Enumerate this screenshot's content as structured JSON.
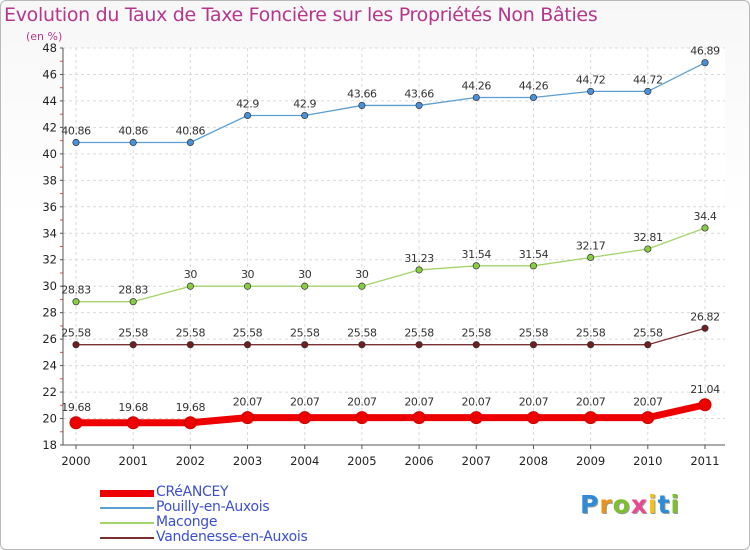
{
  "title": "Evolution du Taux de Taxe Foncière sur les Propriétés Non Bâties",
  "unit_label": "(en %)",
  "logo_text": "Proxiti",
  "logo_colors": [
    "#2e8bd8",
    "#e8941a",
    "#7cbf2f",
    "#e84a8f",
    "#f0c11b",
    "#2e8bd8",
    "#7cbf2f"
  ],
  "chart_data": {
    "type": "line",
    "x": [
      "2000",
      "2001",
      "2002",
      "2003",
      "2004",
      "2005",
      "2006",
      "2007",
      "2008",
      "2009",
      "2010",
      "2011"
    ],
    "ylim": [
      18,
      48
    ],
    "yticks": [
      18,
      20,
      22,
      24,
      26,
      28,
      30,
      32,
      34,
      36,
      38,
      40,
      42,
      44,
      46,
      48
    ],
    "grid": true,
    "legend_position": "bottom-left",
    "series": [
      {
        "name": "CRéANCEY",
        "color": "#ee0000",
        "point_color": "#ee0000",
        "width": 7,
        "values": [
          19.68,
          19.68,
          19.68,
          20.07,
          20.07,
          20.07,
          20.07,
          20.07,
          20.07,
          20.07,
          20.07,
          21.04
        ],
        "labels": [
          "19.68",
          "19.68",
          "19.68",
          "20.07",
          "20.07",
          "20.07",
          "20.07",
          "20.07",
          "20.07",
          "20.07",
          "20.07",
          "21.04"
        ]
      },
      {
        "name": "Pouilly-en-Auxois",
        "color": "#5e9fd1",
        "point_color": "#4a90d9",
        "width": 1.3,
        "values": [
          40.86,
          40.86,
          40.86,
          42.9,
          42.9,
          43.66,
          43.66,
          44.26,
          44.26,
          44.72,
          44.72,
          46.89
        ],
        "labels": [
          "40.86",
          "40.86",
          "40.86",
          "42.9",
          "42.9",
          "43.66",
          "43.66",
          "44.26",
          "44.26",
          "44.72",
          "44.72",
          "46.89"
        ]
      },
      {
        "name": "Maconge",
        "color": "#a5d46a",
        "point_color": "#88cc44",
        "width": 1.3,
        "values": [
          28.83,
          28.83,
          30,
          30,
          30,
          30,
          31.23,
          31.54,
          31.54,
          32.17,
          32.81,
          34.4
        ],
        "labels": [
          "28.83",
          "28.83",
          "30",
          "30",
          "30",
          "30",
          "31.23",
          "31.54",
          "31.54",
          "32.17",
          "32.81",
          "34.4"
        ]
      },
      {
        "name": "Vandenesse-en-Auxois",
        "color": "#7a3030",
        "point_color": "#6e1f1f",
        "width": 1.3,
        "values": [
          25.58,
          25.58,
          25.58,
          25.58,
          25.58,
          25.58,
          25.58,
          25.58,
          25.58,
          25.58,
          25.58,
          26.82
        ],
        "labels": [
          "25.58",
          "25.58",
          "25.58",
          "25.58",
          "25.58",
          "25.58",
          "25.58",
          "25.58",
          "25.58",
          "25.58",
          "25.58",
          "26.82"
        ]
      }
    ]
  }
}
